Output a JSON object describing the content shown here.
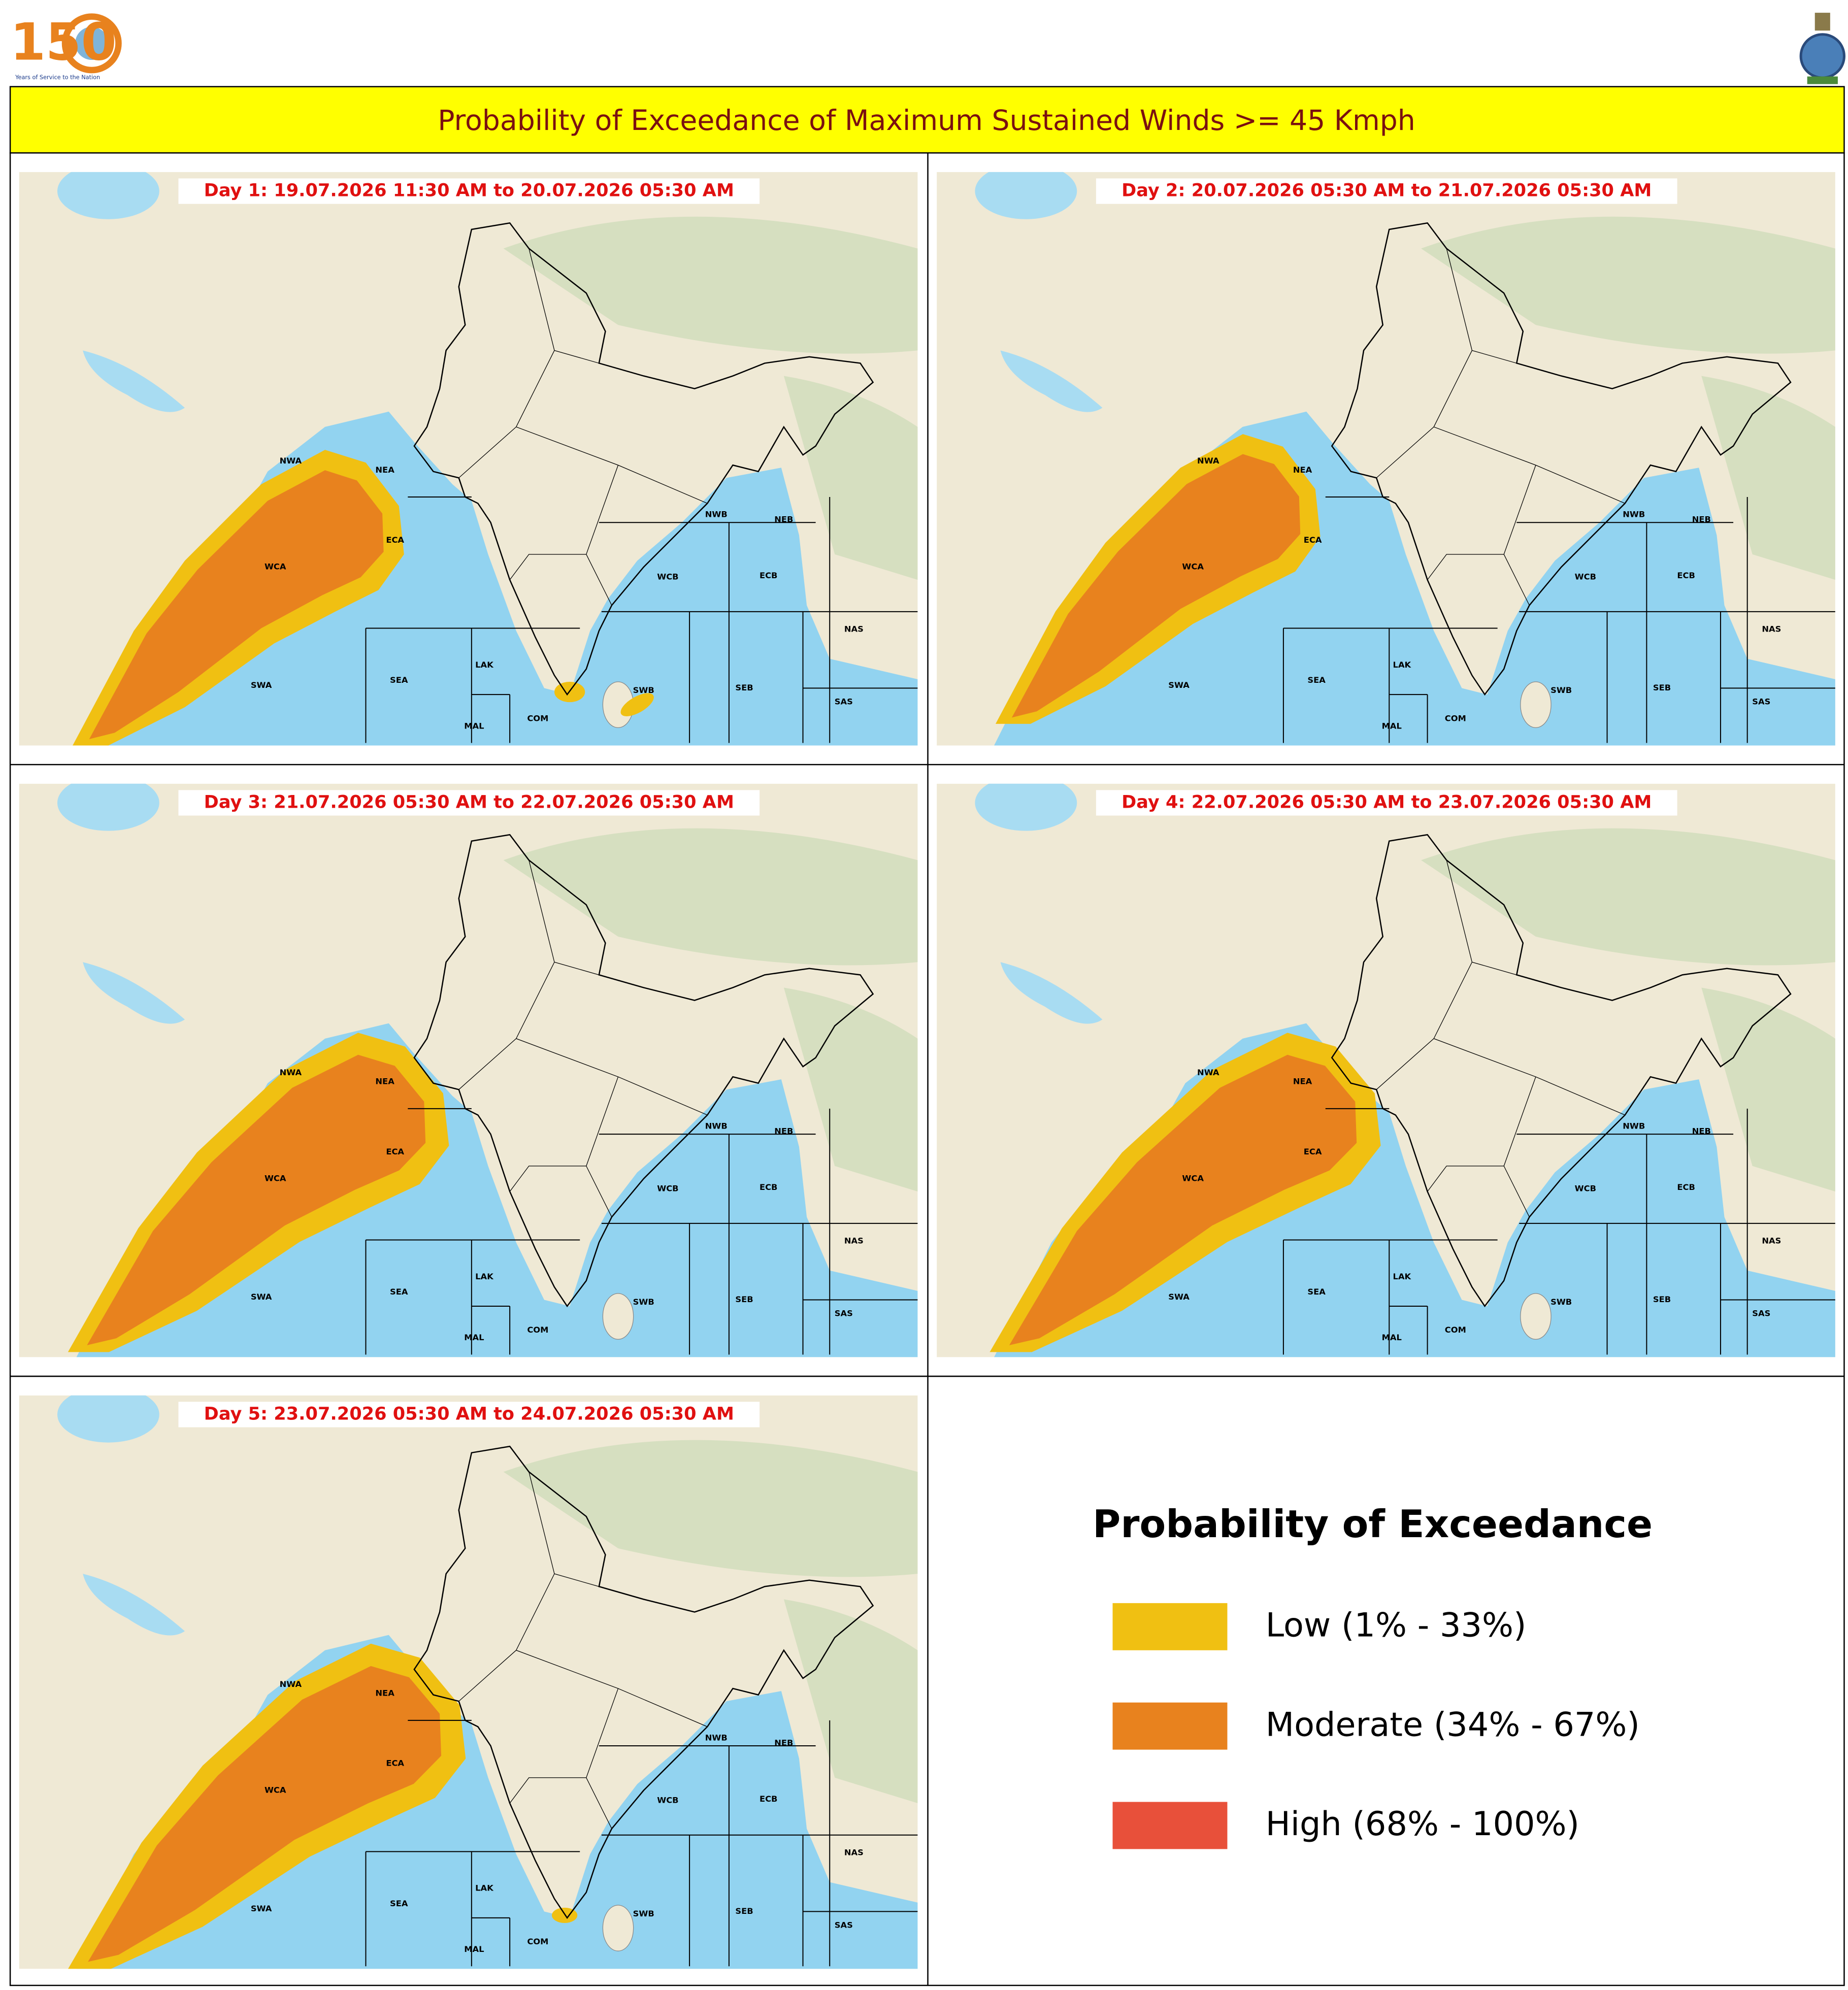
{
  "header": {
    "logo_text": "150",
    "logo_caption": "Years of Service to the Nation",
    "title": "Probability of Exceedance of Maximum Sustained Winds >= 45 Kmph"
  },
  "panels": [
    {
      "label": "Day 1: 19.07.2026 11:30 AM to 20.07.2026 05:30 AM"
    },
    {
      "label": "Day 2: 20.07.2026 05:30 AM to 21.07.2026 05:30 AM"
    },
    {
      "label": "Day 3: 21.07.2026 05:30 AM to 22.07.2026 05:30 AM"
    },
    {
      "label": "Day 4: 22.07.2026 05:30 AM to 23.07.2026 05:30 AM"
    },
    {
      "label": "Day 5: 23.07.2026 05:30 AM to 24.07.2026 05:30 AM"
    }
  ],
  "regions": [
    "NWA",
    "NEA",
    "ECA",
    "WCA",
    "SWA",
    "SEA",
    "LAK",
    "MAL",
    "COM",
    "SWB",
    "SEB",
    "SAS",
    "NAS",
    "WCB",
    "ECB",
    "NWB",
    "NEB"
  ],
  "legend": {
    "title": "Probability of Exceedance",
    "items": [
      {
        "label": "Low (1% - 33%)",
        "color": "#f0c012"
      },
      {
        "label": "Moderate (34% - 67%)",
        "color": "#e8821e"
      },
      {
        "label": "High (68% - 100%)",
        "color": "#e8503a"
      }
    ]
  }
}
